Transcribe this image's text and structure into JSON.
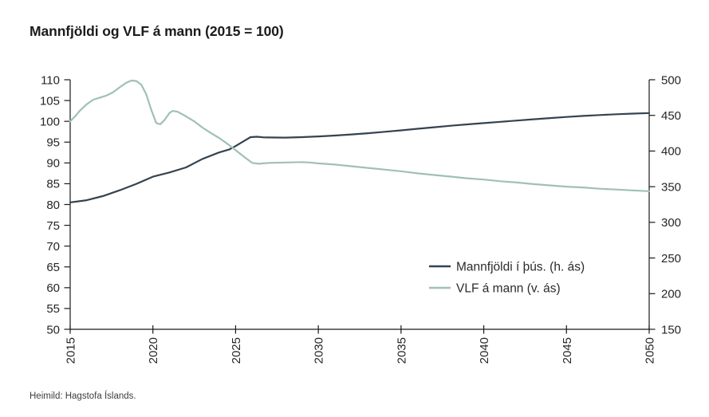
{
  "title": "Mannfjöldi og VLF á mann (2015 = 100)",
  "footer": "Heimild: Hagstofa Íslands.",
  "colors": {
    "population_line": "#344350",
    "vlf_line": "#a0c1b2",
    "axis": "#1a1a1a",
    "tick_label": "#262626",
    "title_text": "#1b1b1b",
    "footer_text": "#3d3d3d",
    "background": "#ffffff"
  },
  "chart_data": {
    "type": "line",
    "title": "Mannfjöldi og VLF á mann (2015 = 100)",
    "grid": false,
    "x_axis": {
      "range": [
        2015,
        2050
      ],
      "ticks": [
        2015,
        2020,
        2025,
        2030,
        2035,
        2040,
        2045,
        2050
      ],
      "tick_label_rotation": -90
    },
    "left_axis": {
      "range": [
        50,
        110
      ],
      "ticks": [
        110,
        105,
        100,
        95,
        90,
        85,
        80,
        75,
        70,
        65,
        60,
        55,
        50
      ],
      "used_by": "VLF á mann (v. ás)"
    },
    "right_axis": {
      "range": [
        150,
        500
      ],
      "ticks": [
        500,
        450,
        400,
        350,
        300,
        250,
        200,
        150
      ],
      "used_by": "Mannfjöldi í þús. (h. ás)"
    },
    "legend": {
      "position": "inside-right-middle",
      "entries": [
        {
          "label": "Mannfjöldi í þús. (h. ás)",
          "color": "#344350"
        },
        {
          "label": "VLF á mann (v. ás)",
          "color": "#a0c1b2"
        }
      ]
    },
    "series": [
      {
        "name": "Mannfjöldi í þús. (h. ás)",
        "axis": "right",
        "color": "#344350",
        "points": [
          [
            2015,
            328
          ],
          [
            2015.5,
            329.5
          ],
          [
            2016,
            331
          ],
          [
            2017,
            337
          ],
          [
            2018,
            345
          ],
          [
            2019,
            354
          ],
          [
            2020,
            364
          ],
          [
            2021,
            370
          ],
          [
            2022,
            377
          ],
          [
            2023,
            389
          ],
          [
            2024,
            398
          ],
          [
            2024.6,
            402
          ],
          [
            2025,
            407
          ],
          [
            2025.5,
            414
          ],
          [
            2025.9,
            419.5
          ],
          [
            2026.3,
            420
          ],
          [
            2026.7,
            419.2
          ],
          [
            2027,
            419
          ],
          [
            2028,
            418.8
          ],
          [
            2029,
            419.5
          ],
          [
            2030,
            420.5
          ],
          [
            2031,
            421.7
          ],
          [
            2032,
            423.3
          ],
          [
            2033,
            425
          ],
          [
            2034,
            427
          ],
          [
            2035,
            429
          ],
          [
            2036,
            431.2
          ],
          [
            2037,
            433.4
          ],
          [
            2038,
            435.5
          ],
          [
            2039,
            437.4
          ],
          [
            2040,
            439.2
          ],
          [
            2041,
            441
          ],
          [
            2042,
            442.8
          ],
          [
            2043,
            444.5
          ],
          [
            2044,
            446.2
          ],
          [
            2045,
            447.8
          ],
          [
            2046,
            449.2
          ],
          [
            2047,
            450.5
          ],
          [
            2048,
            451.6
          ],
          [
            2049,
            452.5
          ],
          [
            2050,
            453.3
          ]
        ]
      },
      {
        "name": "VLF á mann (v. ás)",
        "axis": "left",
        "color": "#a0c1b2",
        "points": [
          [
            2015,
            100
          ],
          [
            2015.3,
            101.2
          ],
          [
            2015.6,
            102.6
          ],
          [
            2016,
            104.1
          ],
          [
            2016.4,
            105.2
          ],
          [
            2016.8,
            105.7
          ],
          [
            2017.2,
            106.2
          ],
          [
            2017.6,
            107
          ],
          [
            2018,
            108.2
          ],
          [
            2018.4,
            109.3
          ],
          [
            2018.7,
            109.8
          ],
          [
            2019,
            109.7
          ],
          [
            2019.3,
            108.8
          ],
          [
            2019.6,
            106.5
          ],
          [
            2019.9,
            102.8
          ],
          [
            2020.2,
            99.6
          ],
          [
            2020.45,
            99.3
          ],
          [
            2020.7,
            100.3
          ],
          [
            2021,
            102
          ],
          [
            2021.2,
            102.5
          ],
          [
            2021.5,
            102.3
          ],
          [
            2022,
            101.2
          ],
          [
            2022.5,
            100
          ],
          [
            2023,
            98.5
          ],
          [
            2023.5,
            97.2
          ],
          [
            2024,
            96
          ],
          [
            2024.5,
            94.6
          ],
          [
            2025,
            93.1
          ],
          [
            2025.5,
            91.5
          ],
          [
            2026,
            90
          ],
          [
            2026.4,
            89.8
          ],
          [
            2027,
            90
          ],
          [
            2028,
            90.1
          ],
          [
            2029,
            90.2
          ],
          [
            2029.5,
            90.1
          ],
          [
            2030,
            89.9
          ],
          [
            2031,
            89.6
          ],
          [
            2032,
            89.2
          ],
          [
            2033,
            88.8
          ],
          [
            2034,
            88.4
          ],
          [
            2035,
            88
          ],
          [
            2036,
            87.5
          ],
          [
            2037,
            87.1
          ],
          [
            2038,
            86.7
          ],
          [
            2039,
            86.3
          ],
          [
            2040,
            86
          ],
          [
            2041,
            85.6
          ],
          [
            2042,
            85.3
          ],
          [
            2043,
            84.9
          ],
          [
            2044,
            84.6
          ],
          [
            2045,
            84.3
          ],
          [
            2046,
            84.1
          ],
          [
            2047,
            83.8
          ],
          [
            2048,
            83.6
          ],
          [
            2049,
            83.4
          ],
          [
            2050,
            83.2
          ]
        ]
      }
    ]
  }
}
